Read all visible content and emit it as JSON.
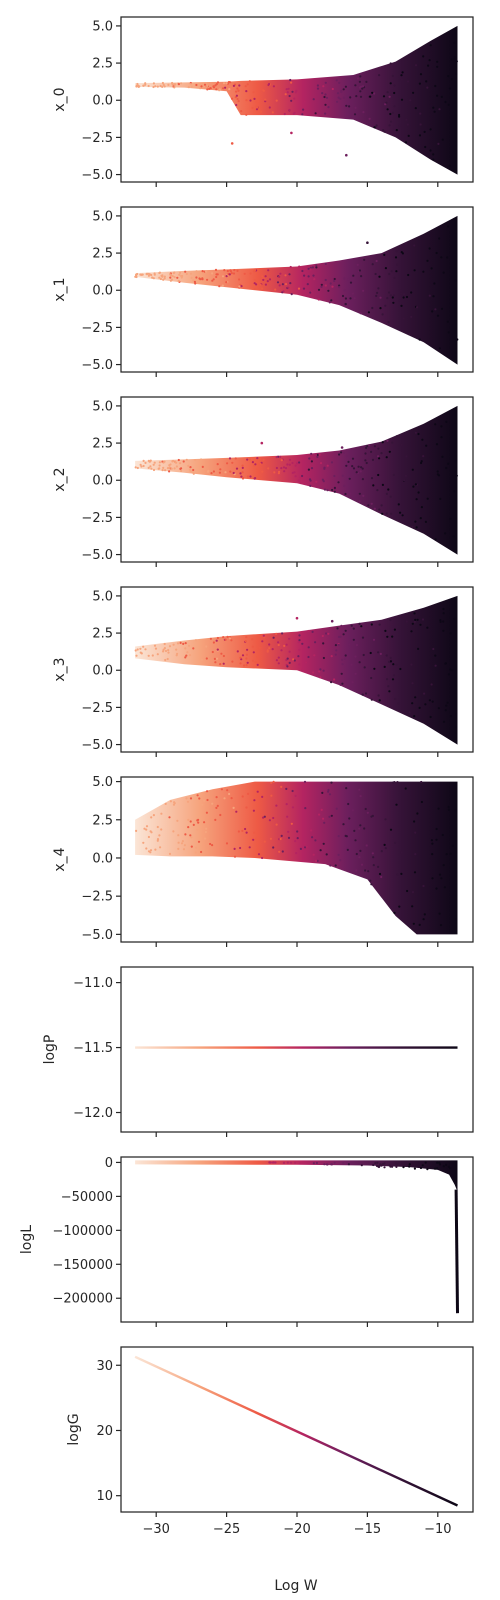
{
  "chart_data": {
    "type": "scatter",
    "xlabel": "Log W",
    "shared_x": true,
    "xlim": [
      -32.5,
      -7.5
    ],
    "x_ticks": [
      -30,
      -25,
      -20,
      -15,
      -10
    ],
    "x_tick_labels": [
      "−30",
      "−25",
      "−20",
      "−15",
      "−10"
    ],
    "grid": false,
    "legend": "none",
    "colormap": [
      "#fbe5d6",
      "#f6a47d",
      "#ee5a45",
      "#b42461",
      "#6c1f5d",
      "#361338",
      "#0d0716"
    ],
    "panels": [
      {
        "ylabel": "x_0",
        "ylim": [
          -5.5,
          5.6
        ],
        "y_ticks": [
          5.0,
          2.5,
          0.0,
          -2.5,
          -5.0
        ],
        "y_tick_labels": [
          "5.0",
          "2.5",
          "0.0",
          "−2.5",
          "−5.0"
        ],
        "envelope": [
          [
            -31.5,
            0.9,
            1.15
          ],
          [
            -28,
            0.85,
            1.2
          ],
          [
            -25,
            0.6,
            1.25
          ],
          [
            -24,
            -1.0,
            1.3
          ],
          [
            -20,
            -1.0,
            1.4
          ],
          [
            -16,
            -1.3,
            1.7
          ],
          [
            -13,
            -2.5,
            2.6
          ],
          [
            -10.5,
            -4.0,
            4.0
          ],
          [
            -8.6,
            -5.0,
            5.0
          ]
        ],
        "outliers": [
          [
            -24.6,
            -2.9
          ],
          [
            -16.5,
            -3.7
          ],
          [
            -20.4,
            -2.2
          ]
        ]
      },
      {
        "ylabel": "x_1",
        "ylim": [
          -5.5,
          5.6
        ],
        "y_ticks": [
          5.0,
          2.5,
          0.0,
          -2.5,
          -5.0
        ],
        "y_tick_labels": [
          "5.0",
          "2.5",
          "0.0",
          "−2.5",
          "−5.0"
        ],
        "envelope": [
          [
            -31.5,
            0.9,
            1.15
          ],
          [
            -28,
            0.5,
            1.3
          ],
          [
            -25,
            0.2,
            1.4
          ],
          [
            -20,
            -0.3,
            1.6
          ],
          [
            -17,
            -1.0,
            2.0
          ],
          [
            -14,
            -2.2,
            2.5
          ],
          [
            -11,
            -3.5,
            3.8
          ],
          [
            -8.6,
            -5.0,
            5.0
          ]
        ],
        "outliers": [
          [
            -15.0,
            3.2
          ]
        ]
      },
      {
        "ylabel": "x_2",
        "ylim": [
          -5.5,
          5.6
        ],
        "y_ticks": [
          5.0,
          2.5,
          0.0,
          -2.5,
          -5.0
        ],
        "y_tick_labels": [
          "5.0",
          "2.5",
          "0.0",
          "−2.5",
          "−5.0"
        ],
        "envelope": [
          [
            -31.5,
            0.8,
            1.3
          ],
          [
            -28,
            0.5,
            1.4
          ],
          [
            -25,
            0.2,
            1.5
          ],
          [
            -20,
            -0.2,
            1.7
          ],
          [
            -17,
            -0.9,
            2.0
          ],
          [
            -14,
            -2.3,
            2.6
          ],
          [
            -11,
            -3.6,
            3.8
          ],
          [
            -8.6,
            -5.0,
            5.0
          ]
        ],
        "outliers": [
          [
            -22.5,
            2.5
          ],
          [
            -16.8,
            2.2
          ]
        ]
      },
      {
        "ylabel": "x_3",
        "ylim": [
          -5.5,
          5.6
        ],
        "y_ticks": [
          5.0,
          2.5,
          0.0,
          -2.5,
          -5.0
        ],
        "y_tick_labels": [
          "5.0",
          "2.5",
          "0.0",
          "−2.5",
          "−5.0"
        ],
        "envelope": [
          [
            -31.5,
            0.8,
            1.6
          ],
          [
            -28,
            0.4,
            2.0
          ],
          [
            -25,
            0.2,
            2.3
          ],
          [
            -20,
            0.0,
            2.6
          ],
          [
            -17,
            -1.0,
            3.0
          ],
          [
            -14,
            -2.3,
            3.4
          ],
          [
            -11,
            -3.6,
            4.2
          ],
          [
            -8.6,
            -5.0,
            5.0
          ]
        ],
        "outliers": [
          [
            -20.0,
            3.5
          ],
          [
            -17.5,
            3.3
          ]
        ]
      },
      {
        "ylabel": "x_4",
        "ylim": [
          -5.5,
          5.3
        ],
        "y_ticks": [
          5.0,
          2.5,
          0.0,
          -2.5,
          -5.0
        ],
        "y_tick_labels": [
          "5.0",
          "2.5",
          "0.0",
          "−2.5",
          "−5.0"
        ],
        "envelope": [
          [
            -31.5,
            0.2,
            2.5
          ],
          [
            -29,
            0.1,
            3.8
          ],
          [
            -26,
            0.1,
            4.5
          ],
          [
            -23,
            0.0,
            5.0
          ],
          [
            -18,
            -0.4,
            5.0
          ],
          [
            -15,
            -1.4,
            5.0
          ],
          [
            -13,
            -3.8,
            5.0
          ],
          [
            -11.5,
            -5.0,
            5.0
          ],
          [
            -8.6,
            -5.0,
            5.0
          ]
        ],
        "outliers": []
      },
      {
        "ylabel": "logP",
        "ylim": [
          -12.15,
          -10.88
        ],
        "y_ticks": [
          -11.0,
          -11.5,
          -12.0
        ],
        "y_tick_labels": [
          "−11.0",
          "−11.5",
          "−12.0"
        ],
        "line": [
          [
            -31.5,
            -11.5
          ],
          [
            -8.6,
            -11.5
          ]
        ]
      },
      {
        "ylabel": "logL",
        "ylim": [
          -235000,
          8000
        ],
        "y_ticks": [
          0,
          -50000,
          -100000,
          -150000,
          -200000
        ],
        "y_tick_labels": [
          "0",
          "−50000",
          "−100000",
          "−150000",
          "−200000"
        ],
        "logL_band": [
          [
            -31.5,
            0
          ],
          [
            -20,
            -500
          ],
          [
            -15,
            -1500
          ],
          [
            -12,
            -4000
          ],
          [
            -10,
            -8000
          ],
          [
            -9.2,
            -15000
          ],
          [
            -8.8,
            -30000
          ],
          [
            -8.6,
            -40000
          ]
        ],
        "logL_spike": [
          [
            -8.7,
            -40000
          ],
          [
            -8.6,
            -222000
          ]
        ]
      },
      {
        "ylabel": "logG",
        "ylim": [
          7.5,
          32.8
        ],
        "y_ticks": [
          30,
          20,
          10
        ],
        "y_tick_labels": [
          "30",
          "20",
          "10"
        ],
        "line": [
          [
            -31.5,
            31.3
          ],
          [
            -8.6,
            8.5
          ]
        ]
      }
    ]
  }
}
